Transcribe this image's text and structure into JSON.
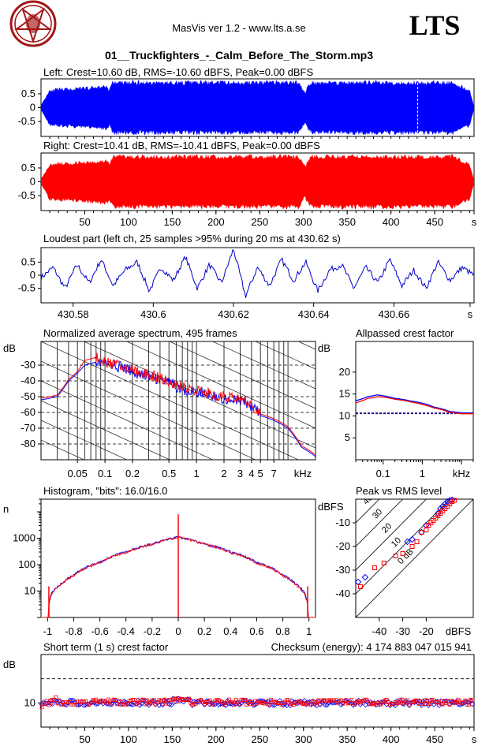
{
  "header": {
    "app_title": "MasVis ver 1.2 - www.lts.a.se",
    "brand": "LTS",
    "logo_icon": "pentagram-goat-logo-icon",
    "filename": "01__Truckfighters_-_Calm_Before_The_Storm.mp3"
  },
  "chart_data": [
    {
      "id": "left",
      "type": "area",
      "title": "Left: Crest=10.60 dB, RMS=-10.60 dBFS, Peak=0.00 dBFS",
      "color": "#0000ff",
      "ylim": [
        -1,
        1
      ],
      "xlim": [
        0,
        495
      ],
      "y_ticks": [
        "0.5",
        "0",
        "-0.5"
      ],
      "y_tick_values": [
        0.5,
        0,
        -0.5
      ],
      "marker_x": 430.62,
      "envelope_x": [
        0,
        10,
        40,
        60,
        75,
        78,
        82,
        90,
        120,
        150,
        155,
        200,
        250,
        295,
        300,
        302,
        305,
        310,
        330,
        380,
        430,
        470,
        490,
        495
      ],
      "envelope_y": [
        0.1,
        0.7,
        0.75,
        0.8,
        0.85,
        0.7,
        1.0,
        1.0,
        1.0,
        1.0,
        1.0,
        1.0,
        1.0,
        1.0,
        0.7,
        0.6,
        0.85,
        1.0,
        1.0,
        1.0,
        1.0,
        1.0,
        0.7,
        0.05
      ]
    },
    {
      "id": "right",
      "type": "area",
      "title": "Right: Crest=10.41 dB, RMS=-10.41 dBFS, Peak=0.00 dBFS",
      "color": "#ff0000",
      "ylim": [
        -1,
        1
      ],
      "xlim": [
        0,
        495
      ],
      "y_ticks": [
        "0.5",
        "0",
        "-0.5"
      ],
      "y_tick_values": [
        0.5,
        0,
        -0.5
      ],
      "x_ticks": [
        "50",
        "100",
        "150",
        "200",
        "250",
        "300",
        "350",
        "400",
        "450",
        "s"
      ],
      "x_tick_values": [
        50,
        100,
        150,
        200,
        250,
        300,
        350,
        400,
        450,
        495
      ],
      "envelope_x": [
        0,
        10,
        40,
        60,
        75,
        78,
        82,
        90,
        120,
        150,
        155,
        200,
        250,
        295,
        300,
        302,
        305,
        310,
        330,
        380,
        430,
        470,
        490,
        495
      ],
      "envelope_y": [
        0.1,
        0.7,
        0.75,
        0.8,
        0.85,
        0.7,
        1.0,
        1.0,
        1.0,
        1.0,
        1.0,
        1.0,
        1.0,
        1.0,
        0.7,
        0.6,
        0.85,
        1.0,
        1.0,
        1.0,
        1.0,
        1.0,
        0.7,
        0.05
      ]
    },
    {
      "id": "loudest",
      "type": "line",
      "title": "Loudest part (left  ch, 25 samples >95% during 20 ms at 430.62 s)",
      "color": "#0000cc",
      "xlim": [
        430.572,
        430.68
      ],
      "ylim": [
        -1,
        1
      ],
      "y_ticks": [
        "0.5",
        "0",
        "-0.5"
      ],
      "y_tick_values": [
        0.5,
        0,
        -0.5
      ],
      "x_ticks": [
        "430.58",
        "430.6",
        "430.62",
        "430.64",
        "430.66",
        "s"
      ],
      "x_tick_values": [
        430.58,
        430.6,
        430.62,
        430.64,
        430.66,
        430.679
      ],
      "x": [
        430.572,
        430.575,
        430.578,
        430.581,
        430.584,
        430.587,
        430.59,
        430.593,
        430.596,
        430.599,
        430.602,
        430.605,
        430.608,
        430.611,
        430.614,
        430.617,
        430.62,
        430.623,
        430.626,
        430.629,
        430.632,
        430.635,
        430.638,
        430.641,
        430.644,
        430.647,
        430.65,
        430.653,
        430.656,
        430.659,
        430.662,
        430.665,
        430.668,
        430.671,
        430.674,
        430.677,
        430.68
      ],
      "y": [
        -0.1,
        0.3,
        -0.5,
        0.4,
        -0.3,
        0.6,
        -0.4,
        0.2,
        0.5,
        -0.6,
        0.3,
        -0.2,
        0.7,
        -0.5,
        0.4,
        -0.3,
        1.0,
        -0.8,
        0.3,
        -0.4,
        0.6,
        -0.2,
        0.5,
        -0.6,
        0.2,
        0.4,
        -0.5,
        0.3,
        -0.3,
        0.6,
        -0.4,
        0.2,
        -0.5,
        0.5,
        -0.2,
        0.3,
        0.0
      ]
    },
    {
      "id": "spectrum",
      "type": "line",
      "title": "Normalized average spectrum, 495 frames",
      "ylabel": "dB",
      "xlabel": "kHz",
      "ylim": [
        -90,
        -15
      ],
      "xlim": [
        0.02,
        20
      ],
      "log_x": true,
      "y_ticks": [
        "-30",
        "-40",
        "-50",
        "-60",
        "-70",
        "-80"
      ],
      "y_tick_values": [
        -30,
        -40,
        -50,
        -60,
        -70,
        -80
      ],
      "x_ticks": [
        "0.05",
        "0.1",
        "0.2",
        "0.5",
        "1",
        "2",
        "3",
        "4",
        "5",
        "7"
      ],
      "x_tick_values": [
        0.05,
        0.1,
        0.2,
        0.5,
        1,
        2,
        3,
        4,
        5,
        7
      ],
      "series": [
        {
          "color": "#0000ff",
          "x": [
            0.02,
            0.03,
            0.04,
            0.05,
            0.06,
            0.08,
            0.1,
            0.15,
            0.2,
            0.3,
            0.5,
            0.7,
            1,
            1.5,
            2,
            3,
            4,
            5,
            7,
            10,
            14,
            20
          ],
          "y": [
            -52,
            -50,
            -40,
            -35,
            -30,
            -28,
            -30,
            -32,
            -35,
            -38,
            -42,
            -46,
            -48,
            -50,
            -52,
            -53,
            -57,
            -62,
            -65,
            -70,
            -82,
            -88
          ]
        },
        {
          "color": "#ff0000",
          "x": [
            0.02,
            0.03,
            0.04,
            0.05,
            0.06,
            0.08,
            0.1,
            0.15,
            0.2,
            0.3,
            0.5,
            0.7,
            1,
            1.5,
            2,
            3,
            4,
            5,
            7,
            10,
            14,
            20
          ],
          "y": [
            -51,
            -49,
            -39,
            -34,
            -27,
            -25,
            -29,
            -31,
            -34,
            -37,
            -41,
            -45,
            -47,
            -49,
            -51,
            -52,
            -56,
            -61,
            -64,
            -69,
            -81,
            -87
          ]
        }
      ]
    },
    {
      "id": "allpass",
      "type": "line",
      "title": "Allpassed crest factor",
      "ylabel": "dB",
      "xlabel": "kHz",
      "ylim": [
        0,
        27
      ],
      "xlim": [
        0.02,
        20
      ],
      "log_x": true,
      "y_ticks": [
        "20",
        "15",
        "10",
        "5"
      ],
      "y_tick_values": [
        20,
        15,
        10,
        5
      ],
      "x_ticks": [
        "0.1",
        "1",
        "kHz"
      ],
      "x_tick_values": [
        0.1,
        1,
        10
      ],
      "reference": 10.6,
      "series": [
        {
          "color": "#0000ff",
          "x": [
            0.02,
            0.04,
            0.07,
            0.1,
            0.2,
            0.5,
            1,
            2,
            5,
            10,
            20
          ],
          "y": [
            13.5,
            14.4,
            14.8,
            14.6,
            14.0,
            13.4,
            12.9,
            12.0,
            11.0,
            10.7,
            10.7
          ]
        },
        {
          "color": "#ff0000",
          "x": [
            0.02,
            0.04,
            0.07,
            0.1,
            0.2,
            0.5,
            1,
            2,
            5,
            10,
            20
          ],
          "y": [
            13.0,
            14.0,
            14.4,
            14.3,
            13.8,
            13.2,
            12.6,
            11.8,
            10.8,
            10.5,
            10.5
          ]
        }
      ]
    },
    {
      "id": "histogram",
      "type": "line",
      "title": "Histogram, \"bits\": 16.0/16.0",
      "ylabel": "n",
      "log_y": true,
      "xlim": [
        -1.05,
        1.05
      ],
      "ylim": [
        1,
        30000
      ],
      "y_ticks": [
        "1000",
        "100",
        "10"
      ],
      "y_tick_values": [
        1000,
        100,
        10
      ],
      "x_ticks": [
        "-1",
        "-0.8",
        "-0.6",
        "-0.4",
        "-0.2",
        "0",
        "0.2",
        "0.4",
        "0.6",
        "0.8",
        "1"
      ],
      "x_tick_values": [
        -1,
        -0.8,
        -0.6,
        -0.4,
        -0.2,
        0,
        0.2,
        0.4,
        0.6,
        0.8,
        1
      ],
      "series": [
        {
          "color": "#0000ff",
          "x": [
            -0.99,
            -0.97,
            -0.9,
            -0.8,
            -0.6,
            -0.4,
            -0.2,
            0,
            0.2,
            0.4,
            0.6,
            0.8,
            0.9,
            0.97,
            0.99
          ],
          "y": [
            3,
            8,
            18,
            40,
            120,
            300,
            600,
            1100,
            600,
            300,
            120,
            40,
            18,
            8,
            3
          ]
        },
        {
          "color": "#ff0000",
          "x": [
            -0.99,
            -0.97,
            -0.9,
            -0.8,
            -0.6,
            -0.4,
            -0.2,
            0,
            0.2,
            0.4,
            0.6,
            0.8,
            0.9,
            0.97,
            0.99
          ],
          "y": [
            3,
            7,
            17,
            38,
            115,
            290,
            590,
            1080,
            590,
            290,
            115,
            38,
            17,
            7,
            3
          ]
        }
      ],
      "spikes": [
        {
          "x": -0.99,
          "y": 15
        },
        {
          "x": 0,
          "y": 8000
        },
        {
          "x": 0.99,
          "y": 15
        }
      ]
    },
    {
      "id": "peak_rms",
      "type": "scatter",
      "title": "Peak vs RMS level",
      "ylabel": "dBFS",
      "xlabel": "dBFS",
      "xlim": [
        -50,
        0
      ],
      "ylim": [
        -50,
        0
      ],
      "y_ticks": [
        "-10",
        "-20",
        "-30",
        "-40"
      ],
      "y_tick_values": [
        -10,
        -20,
        -30,
        -40
      ],
      "x_ticks": [
        "-40",
        "-30",
        "-20"
      ],
      "x_tick_values": [
        -40,
        -30,
        -20
      ],
      "diag_labels": [
        "40",
        "30",
        "20",
        "10",
        "0 dB"
      ],
      "diag_offsets": [
        40,
        30,
        20,
        10,
        0
      ],
      "series": [
        {
          "color": "#0000ff",
          "x": [
            -49,
            -46,
            -28,
            -26,
            -22,
            -20,
            -15,
            -14,
            -13,
            -12,
            -11,
            -10,
            -9
          ],
          "y": [
            -35,
            -33,
            -18,
            -17,
            -14,
            -11,
            -6,
            -4,
            -3,
            -2,
            -1,
            -0.5,
            -0.3
          ]
        },
        {
          "color": "#ff0000",
          "x": [
            -48,
            -42,
            -38,
            -33,
            -30,
            -26,
            -24,
            -22,
            -20,
            -19,
            -18,
            -17,
            -16,
            -15,
            -14,
            -13,
            -12,
            -11,
            -10,
            -9,
            -8
          ],
          "y": [
            -37,
            -29,
            -27,
            -24,
            -23,
            -20,
            -18,
            -14,
            -13,
            -11,
            -10,
            -9,
            -8,
            -7,
            -6,
            -5,
            -4,
            -3,
            -2,
            -1,
            -0.5
          ]
        }
      ]
    },
    {
      "id": "short_crest",
      "type": "scatter",
      "title": "Short term (1 s) crest factor",
      "checksum": "Checksum (energy):  4 174 883 047 015 941",
      "ylabel": "dB",
      "xlim": [
        0,
        495
      ],
      "ylim": [
        0,
        30
      ],
      "y_ticks": [
        "10"
      ],
      "y_tick_values": [
        10
      ],
      "reference": 20,
      "x_ticks": [
        "50",
        "100",
        "150",
        "200",
        "250",
        "300",
        "350",
        "400",
        "450",
        "s"
      ],
      "x_tick_values": [
        50,
        100,
        150,
        200,
        250,
        300,
        350,
        400,
        450,
        495
      ],
      "series": [
        {
          "color": "#0000ff",
          "baseline": 10.0
        },
        {
          "color": "#ff0000",
          "baseline": 10.3
        }
      ]
    }
  ]
}
